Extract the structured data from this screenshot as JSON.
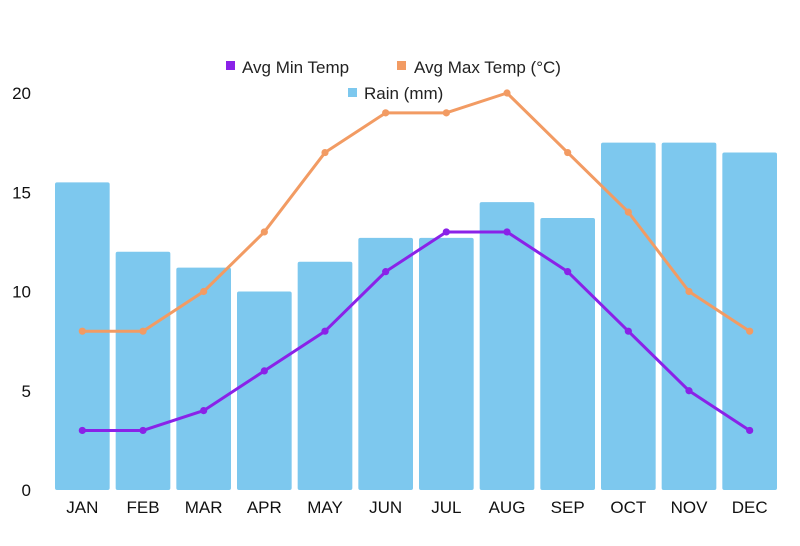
{
  "chart_data": {
    "type": "bar",
    "title": "",
    "xlabel": "",
    "ylabel": "",
    "ylim": [
      0,
      20
    ],
    "yticks": [
      0,
      5,
      10,
      15,
      20
    ],
    "grid": false,
    "legend_position": "top-center",
    "categories": [
      "JAN",
      "FEB",
      "MAR",
      "APR",
      "MAY",
      "JUN",
      "JUL",
      "AUG",
      "SEP",
      "OCT",
      "NOV",
      "DEC"
    ],
    "series": [
      {
        "name": "Rain (mm)",
        "type": "bar",
        "color": "#7DC8EE",
        "values": [
          15.5,
          12,
          11.2,
          10,
          11.5,
          12.7,
          12.7,
          14.5,
          13.7,
          17.5,
          17.5,
          17
        ]
      },
      {
        "name": "Avg Min Temp",
        "type": "line",
        "color": "#8A22E8",
        "values": [
          3,
          3,
          4,
          6,
          8,
          11,
          13,
          13,
          11,
          8,
          5,
          3
        ]
      },
      {
        "name": "Avg Max Temp (°C)",
        "type": "line",
        "color": "#F29B63",
        "values": [
          8,
          8,
          10,
          13,
          17,
          19,
          19,
          20,
          17,
          14,
          10,
          8
        ]
      }
    ]
  }
}
